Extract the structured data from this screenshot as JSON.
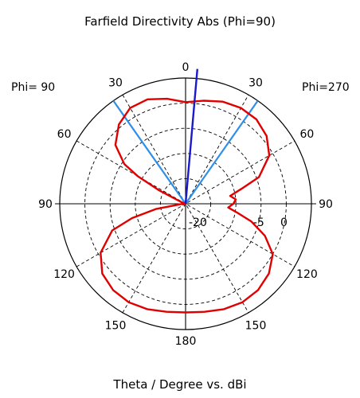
{
  "chart_data": {
    "type": "polar",
    "title": "Farfield Directivity Abs (Phi=90)",
    "xlabel": "Theta / Degree vs. dBi",
    "side_labels": {
      "left": "Phi= 90",
      "right": "Phi=270"
    },
    "angle_ticks": [
      {
        "label": "0",
        "angle": 0
      },
      {
        "label": "30",
        "angle": -30
      },
      {
        "label": "30",
        "angle": 30
      },
      {
        "label": "60",
        "angle": -60
      },
      {
        "label": "60",
        "angle": 60
      },
      {
        "label": "90",
        "angle": -90
      },
      {
        "label": "90",
        "angle": 90
      },
      {
        "label": "120",
        "angle": -120
      },
      {
        "label": "120",
        "angle": 120
      },
      {
        "label": "150",
        "angle": -150
      },
      {
        "label": "150",
        "angle": 150
      },
      {
        "label": "180",
        "angle": 180
      }
    ],
    "radial_ticks": [
      "-20",
      "-5",
      "0"
    ],
    "r_range_dbi": [
      -20,
      5
    ],
    "grid_db": [
      -15,
      -10,
      -5,
      0
    ],
    "colors": {
      "pattern": "#e00000",
      "main_lobe": "#1a1acc",
      "beamwidth": "#2f8fe8",
      "grid": "#000000"
    },
    "main_lobe_theta_deg": 5,
    "beamwidth_lines_theta_deg": [
      -35,
      35
    ],
    "series": [
      {
        "points": [
          {
            "theta": 0,
            "dbi": 0.2
          },
          {
            "theta": 10,
            "dbi": 1.2
          },
          {
            "theta": 20,
            "dbi": 2.1
          },
          {
            "theta": 30,
            "dbi": 2.0
          },
          {
            "theta": 40,
            "dbi": 0.6
          },
          {
            "theta": 50,
            "dbi": -1.8
          },
          {
            "theta": 57,
            "dbi": -5.5
          },
          {
            "theta": 60,
            "dbi": -9
          },
          {
            "theta": 63,
            "dbi": -14
          },
          {
            "theta": 68,
            "dbi": -19
          },
          {
            "theta": 76,
            "dbi": -20
          },
          {
            "theta": 84,
            "dbi": -19.5
          },
          {
            "theta": 90,
            "dbi": -20
          },
          {
            "theta": 95,
            "dbi": -19
          },
          {
            "theta": 100,
            "dbi": -14
          },
          {
            "theta": 105,
            "dbi": -9
          },
          {
            "theta": 110,
            "dbi": -4.5
          },
          {
            "theta": 120,
            "dbi": -0.5
          },
          {
            "theta": 130,
            "dbi": 1.6
          },
          {
            "theta": 140,
            "dbi": 2.4
          },
          {
            "theta": 150,
            "dbi": 2.6
          },
          {
            "theta": 160,
            "dbi": 2.3
          },
          {
            "theta": 170,
            "dbi": 1.8
          },
          {
            "theta": 180,
            "dbi": 1.6
          },
          {
            "theta": 190,
            "dbi": 1.8
          },
          {
            "theta": 200,
            "dbi": 2.3
          },
          {
            "theta": 210,
            "dbi": 2.6
          },
          {
            "theta": 220,
            "dbi": 2.4
          },
          {
            "theta": 230,
            "dbi": 1.6
          },
          {
            "theta": 240,
            "dbi": 0
          },
          {
            "theta": 248,
            "dbi": -3
          },
          {
            "theta": 255,
            "dbi": -6.5
          },
          {
            "theta": 260,
            "dbi": -9.5
          },
          {
            "theta": 265,
            "dbi": -11.5
          },
          {
            "theta": 270,
            "dbi": -10.5
          },
          {
            "theta": 275,
            "dbi": -10
          },
          {
            "theta": 280,
            "dbi": -11
          },
          {
            "theta": 285,
            "dbi": -8.5
          },
          {
            "theta": 290,
            "dbi": -4.5
          },
          {
            "theta": 300,
            "dbi": -0.8
          },
          {
            "theta": 310,
            "dbi": 1.0
          },
          {
            "theta": 320,
            "dbi": 1.9
          },
          {
            "theta": 330,
            "dbi": 2.0
          },
          {
            "theta": 340,
            "dbi": 1.6
          },
          {
            "theta": 350,
            "dbi": 0.8
          }
        ]
      }
    ]
  }
}
